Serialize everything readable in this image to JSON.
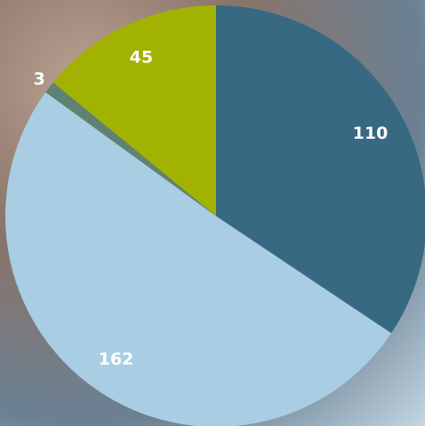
{
  "chart_data": {
    "type": "pie",
    "categories": [
      null,
      null,
      null,
      null
    ],
    "values": [
      110,
      162,
      3,
      45
    ],
    "colors": [
      "#386983",
      "#a9cde3",
      "#5f8272",
      "#a2b200"
    ],
    "start_angle": 0,
    "direction": "clockwise"
  }
}
